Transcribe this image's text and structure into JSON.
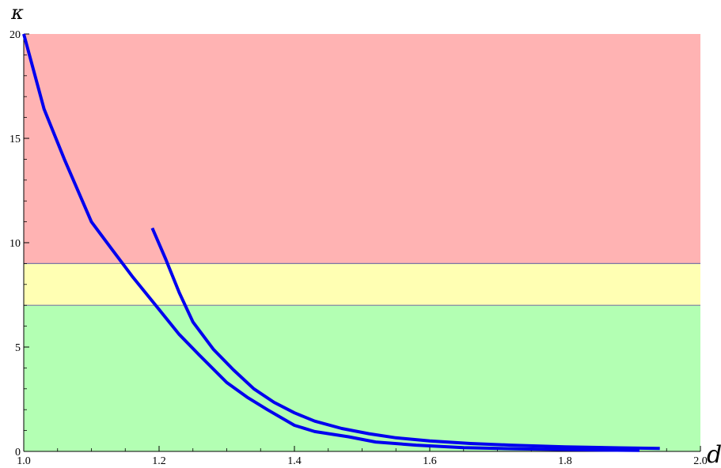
{
  "chart_data": {
    "type": "line",
    "xlabel": "d",
    "ylabel": "κ",
    "xlim": [
      1.0,
      2.0
    ],
    "ylim": [
      0,
      20
    ],
    "x_ticks": [
      1.0,
      1.2,
      1.4,
      1.6,
      1.8,
      2.0
    ],
    "x_tick_labels": [
      "1.0",
      "1.2",
      "1.4",
      "1.6",
      "1.8",
      "2.0"
    ],
    "y_ticks": [
      0,
      5,
      10,
      15,
      20
    ],
    "y_tick_labels": [
      "0",
      "5",
      "10",
      "15",
      "20"
    ],
    "grid": false,
    "bands": [
      {
        "y0": 0,
        "y1": 7,
        "color": "#b3ffb3"
      },
      {
        "y0": 7,
        "y1": 9,
        "color": "#ffffb3"
      },
      {
        "y0": 9,
        "y1": 20,
        "color": "#ffb3b3"
      }
    ],
    "band_boundary_color": "#7a7aa3",
    "series_color": "#0000ee",
    "series": [
      {
        "x": [
          1.0,
          1.03,
          1.06,
          1.1,
          1.13,
          1.16,
          1.2,
          1.23,
          1.26,
          1.3,
          1.33,
          1.36,
          1.4,
          1.43,
          1.48,
          1.52,
          1.58,
          1.65,
          1.73,
          1.8,
          1.86,
          1.91
        ],
        "y": [
          20.0,
          16.4,
          14.0,
          11.0,
          9.7,
          8.4,
          6.8,
          5.6,
          4.6,
          3.3,
          2.6,
          2.0,
          1.25,
          0.95,
          0.7,
          0.45,
          0.3,
          0.18,
          0.12,
          0.09,
          0.06,
          0.05
        ]
      },
      {
        "x": [
          1.19,
          1.21,
          1.23,
          1.25,
          1.28,
          1.31,
          1.34,
          1.37,
          1.4,
          1.43,
          1.47,
          1.51,
          1.55,
          1.6,
          1.66,
          1.72,
          1.8,
          1.88,
          1.94
        ],
        "y": [
          10.7,
          9.2,
          7.6,
          6.2,
          4.9,
          3.9,
          3.0,
          2.35,
          1.85,
          1.45,
          1.1,
          0.85,
          0.65,
          0.5,
          0.38,
          0.3,
          0.22,
          0.17,
          0.14
        ]
      }
    ]
  }
}
